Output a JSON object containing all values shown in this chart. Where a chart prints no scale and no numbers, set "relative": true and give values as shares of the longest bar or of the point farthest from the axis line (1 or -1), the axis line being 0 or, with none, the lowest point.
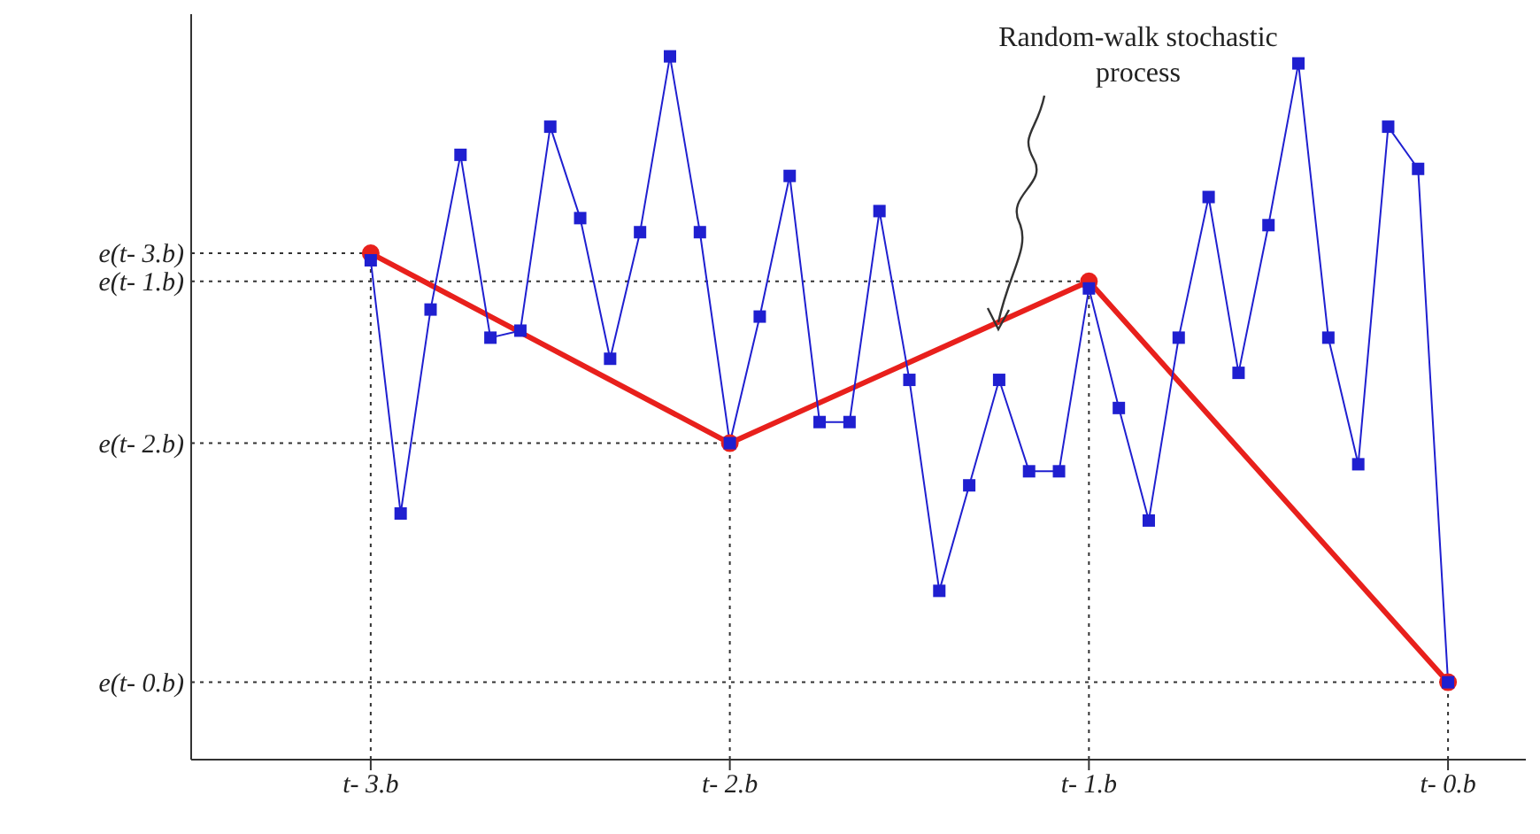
{
  "chart_data": {
    "type": "line",
    "relative": true,
    "categories": [
      "t- 3.b",
      null,
      null,
      null,
      null,
      null,
      null,
      null,
      null,
      null,
      null,
      null,
      "t- 2.b",
      null,
      null,
      null,
      null,
      null,
      null,
      null,
      null,
      null,
      null,
      null,
      "t- 1.b",
      null,
      null,
      null,
      null,
      null,
      null,
      null,
      null,
      null,
      null,
      null,
      "t- 0.b"
    ],
    "series": [
      {
        "color": "#1f1fd0",
        "marker": "square",
        "values": [
          0.71,
          0.35,
          0.64,
          0.86,
          0.6,
          0.61,
          0.9,
          0.77,
          0.57,
          0.75,
          1,
          0.75,
          0.45,
          0.63,
          0.83,
          0.48,
          0.48,
          0.78,
          0.54,
          0.24,
          0.39,
          0.54,
          0.41,
          0.41,
          0.67,
          0.5,
          0.34,
          0.6,
          0.8,
          0.55,
          0.76,
          0.99,
          0.6,
          0.42,
          0.9,
          0.84,
          0.11
        ]
      },
      {
        "color": "#e8201c",
        "marker": "circle",
        "values": [
          0.72,
          null,
          null,
          null,
          null,
          null,
          null,
          null,
          null,
          null,
          null,
          null,
          0.45,
          null,
          null,
          null,
          null,
          null,
          null,
          null,
          null,
          null,
          null,
          null,
          0.68,
          null,
          null,
          null,
          null,
          null,
          null,
          null,
          null,
          null,
          null,
          null,
          0.11
        ]
      }
    ],
    "ref_lines": [
      {
        "axis": "y",
        "value": 0.72,
        "label": "e(t- 3.b)",
        "line_style": "dotted"
      },
      {
        "axis": "y",
        "value": 0.68,
        "label": "e(t- 1.b)",
        "line_style": "dotted"
      },
      {
        "axis": "y",
        "value": 0.45,
        "label": "e(t- 2.b)",
        "line_style": "dotted"
      },
      {
        "axis": "y",
        "value": 0.11,
        "label": "e(t- 0.b)",
        "line_style": "dotted"
      },
      {
        "axis": "x",
        "value": "t- 3.b",
        "line_style": "dotted"
      },
      {
        "axis": "x",
        "value": "t- 2.b",
        "line_style": "dotted"
      },
      {
        "axis": "x",
        "value": "t- 1.b",
        "line_style": "dotted"
      },
      {
        "axis": "x",
        "value": "t- 0.b",
        "line_style": "dotted"
      }
    ],
    "annotations": [
      "Random-walk stochastic process"
    ]
  }
}
